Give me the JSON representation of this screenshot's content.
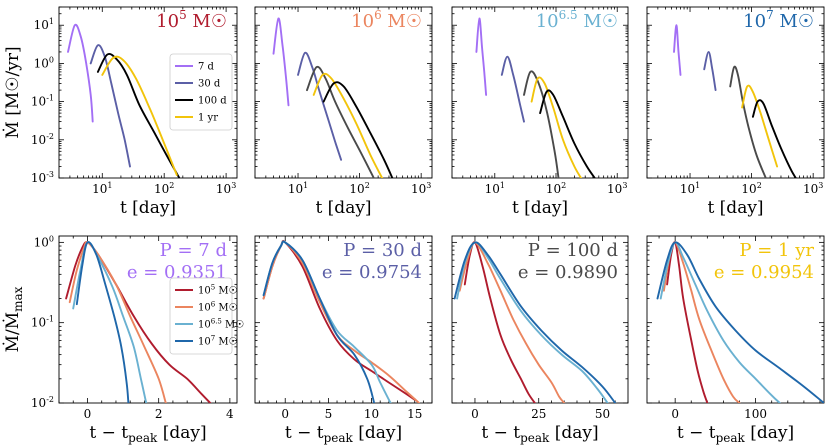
{
  "colors": {
    "p7d": "#a36ff5",
    "p30d": "#5b5fa6",
    "p100d": "#4a4a4a",
    "p100d_bh5": "#000000",
    "p1yr": "#f2c40b",
    "m5": "#b01c2e",
    "m6": "#eb855f",
    "m65": "#6ab1d1",
    "m7": "#1f67aa"
  },
  "chart_data": [
    {
      "type": "line",
      "panel": "top",
      "log_x": true,
      "log_y": true,
      "title": "10^5 M☉",
      "title_color": "m5",
      "xlabel": "t [day]",
      "ylabel": "Ṁ [M☉/yr]",
      "xlim": [
        2,
        1500
      ],
      "ylim": [
        0.001,
        30
      ],
      "xticks": [
        "10^1",
        "10^2",
        "10^3"
      ],
      "yticks": [
        "10^-3",
        "10^-2",
        "10^-1",
        "10^0",
        "10^1"
      ],
      "legend": {
        "placement": "center-right",
        "entries": [
          "7 d",
          "30 d",
          "100 d",
          "1 yr"
        ]
      },
      "series": [
        {
          "name": "7 d",
          "color": "p7d",
          "x": [
            2.8,
            3.6,
            4.5,
            5.5,
            6.5,
            7.0
          ],
          "y": [
            2.0,
            10.0,
            5.0,
            1.0,
            0.15,
            0.03
          ]
        },
        {
          "name": "30 d",
          "color": "p30d",
          "x": [
            6.5,
            8.5,
            11,
            14,
            18,
            23,
            28
          ],
          "y": [
            1.0,
            3.0,
            1.5,
            0.3,
            0.05,
            0.01,
            0.002
          ]
        },
        {
          "name": "100 d",
          "color": "p100d_bh5",
          "x": [
            8.5,
            12,
            17,
            25,
            40,
            70,
            120,
            190
          ],
          "y": [
            0.6,
            1.7,
            1.3,
            0.5,
            0.08,
            0.015,
            0.003,
            0.0008
          ]
        },
        {
          "name": "1 yr",
          "color": "p1yr",
          "x": [
            10,
            15,
            22,
            35,
            60,
            100,
            160
          ],
          "y": [
            0.5,
            1.4,
            1.2,
            0.4,
            0.06,
            0.008,
            0.0012
          ]
        }
      ]
    },
    {
      "type": "line",
      "panel": "top",
      "log_x": true,
      "log_y": true,
      "title": "10^6 M☉",
      "title_color": "m6",
      "xlabel": "t [day]",
      "ylabel": "",
      "xlim": [
        2,
        1500
      ],
      "ylim": [
        0.001,
        30
      ],
      "xticks": [
        "10^1",
        "10^2",
        "10^3"
      ],
      "yticks": [],
      "series": [
        {
          "name": "7 d",
          "color": "p7d",
          "x": [
            4.0,
            4.8,
            5.6,
            6.4,
            7.0
          ],
          "y": [
            1.8,
            15.0,
            3.0,
            0.4,
            0.08
          ]
        },
        {
          "name": "30 d",
          "color": "p30d",
          "x": [
            10,
            13,
            17,
            22,
            30,
            40,
            50
          ],
          "y": [
            0.5,
            1.9,
            0.8,
            0.2,
            0.04,
            0.009,
            0.003
          ]
        },
        {
          "name": "100 d",
          "color": "p100d",
          "x": [
            14,
            20,
            28,
            40,
            65,
            110,
            170
          ],
          "y": [
            0.2,
            0.8,
            0.4,
            0.1,
            0.02,
            0.004,
            0.001
          ]
        },
        {
          "name": "1 yr",
          "color": "p1yr",
          "x": [
            18,
            25,
            35,
            55,
            90,
            150,
            240
          ],
          "y": [
            0.15,
            0.5,
            0.4,
            0.12,
            0.025,
            0.004,
            0.0009
          ]
        },
        {
          "name": "",
          "color": "p100d_bh5",
          "x": [
            26,
            38,
            55,
            90,
            150,
            250,
            350
          ],
          "y": [
            0.1,
            0.3,
            0.25,
            0.07,
            0.015,
            0.003,
            0.0009
          ]
        }
      ]
    },
    {
      "type": "line",
      "panel": "top",
      "log_x": true,
      "log_y": true,
      "title": "10^6.5 M☉",
      "title_color": "m65",
      "xlabel": "t [day]",
      "ylabel": "",
      "xlim": [
        2,
        1500
      ],
      "ylim": [
        0.001,
        30
      ],
      "xticks": [
        "10^1",
        "10^2",
        "10^3"
      ],
      "yticks": [],
      "series": [
        {
          "name": "7 d",
          "color": "p7d",
          "x": [
            5.0,
            5.6,
            6.2,
            6.8,
            7.2
          ],
          "y": [
            2.0,
            15.0,
            2.5,
            0.5,
            0.15
          ]
        },
        {
          "name": "30 d",
          "color": "p30d",
          "x": [
            13,
            16,
            20,
            26,
            30
          ],
          "y": [
            0.5,
            1.5,
            0.5,
            0.08,
            0.03
          ]
        },
        {
          "name": "100 d",
          "color": "p100d",
          "x": [
            30,
            38,
            50,
            70,
            95,
            110
          ],
          "y": [
            0.15,
            0.6,
            0.35,
            0.06,
            0.005,
            0.001
          ]
        },
        {
          "name": "1 yr",
          "color": "p1yr",
          "x": [
            40,
            50,
            65,
            90,
            130,
            200,
            280
          ],
          "y": [
            0.1,
            0.4,
            0.3,
            0.07,
            0.01,
            0.002,
            0.0008
          ]
        },
        {
          "name": "",
          "color": "p100d_bh5",
          "x": [
            55,
            70,
            90,
            130,
            200,
            320,
            450
          ],
          "y": [
            0.05,
            0.18,
            0.15,
            0.04,
            0.008,
            0.002,
            0.0009
          ]
        }
      ]
    },
    {
      "type": "line",
      "panel": "top",
      "log_x": true,
      "log_y": true,
      "title": "10^7 M☉",
      "title_color": "m7",
      "xlabel": "t [day]",
      "ylabel": "",
      "xlim": [
        2,
        1500
      ],
      "ylim": [
        0.001,
        30
      ],
      "xticks": [
        "10^1",
        "10^2",
        "10^3"
      ],
      "yticks": [],
      "series": [
        {
          "name": "7 d",
          "color": "p7d",
          "x": [
            5.5,
            6.0,
            6.5,
            7.0
          ],
          "y": [
            2.0,
            10.0,
            2.0,
            0.5
          ]
        },
        {
          "name": "30 d",
          "color": "p30d",
          "x": [
            17,
            20,
            23,
            26
          ],
          "y": [
            0.7,
            2.0,
            0.7,
            0.2
          ]
        },
        {
          "name": "100 d",
          "color": "p100d",
          "x": [
            45,
            52,
            60,
            72,
            90,
            120,
            170
          ],
          "y": [
            0.25,
            0.8,
            0.5,
            0.1,
            0.02,
            0.004,
            0.001
          ]
        },
        {
          "name": "1 yr",
          "color": "p1yr",
          "x": [
            70,
            85,
            105,
            140,
            190,
            260
          ],
          "y": [
            0.07,
            0.25,
            0.18,
            0.05,
            0.01,
            0.002
          ]
        },
        {
          "name": "",
          "color": "p100d_bh5",
          "x": [
            105,
            125,
            155,
            210,
            300,
            450,
            640
          ],
          "y": [
            0.04,
            0.1,
            0.09,
            0.025,
            0.006,
            0.0015,
            0.0006
          ]
        }
      ]
    },
    {
      "type": "line",
      "panel": "bottom",
      "log_x": false,
      "log_y": true,
      "title": "P = 7 d",
      "title2": "e = 0.9351",
      "title_color": "p7d",
      "xlabel": "t − t_peak [day]",
      "ylabel": "Ṁ/Ṁ_max",
      "xlim": [
        -0.8,
        4.2
      ],
      "ylim": [
        0.01,
        1.2
      ],
      "xticks": [
        0,
        2,
        4
      ],
      "yticks": [
        "10^-2",
        "10^-1",
        "10^0"
      ],
      "legend": {
        "placement": "center-right",
        "entries": [
          "10^5 M☉",
          "10^6 M☉",
          "10^6.5 M☉",
          "10^7 M☉"
        ]
      },
      "series": [
        {
          "name": "10^5 M☉",
          "color": "m5",
          "x": [
            -0.6,
            -0.35,
            -0.15,
            0,
            0.3,
            0.8,
            1.3,
            1.8,
            2.3,
            2.8,
            3.2,
            3.45
          ],
          "y": [
            0.2,
            0.5,
            0.85,
            1.0,
            0.7,
            0.3,
            0.12,
            0.055,
            0.03,
            0.02,
            0.013,
            0.01
          ]
        },
        {
          "name": "10^6 M☉",
          "color": "m6",
          "x": [
            -0.5,
            -0.3,
            -0.1,
            0,
            0.3,
            0.8,
            1.2,
            1.6,
            2.0,
            2.2
          ],
          "y": [
            0.18,
            0.45,
            0.85,
            1.0,
            0.7,
            0.3,
            0.12,
            0.05,
            0.02,
            0.01
          ]
        },
        {
          "name": "10^6.5 M☉",
          "color": "m65",
          "x": [
            -0.4,
            -0.2,
            0,
            0.3,
            0.7,
            1.0,
            1.3,
            1.5,
            1.65
          ],
          "y": [
            0.15,
            0.45,
            1.0,
            0.65,
            0.28,
            0.12,
            0.05,
            0.02,
            0.01
          ]
        },
        {
          "name": "10^7 M☉",
          "color": "m7",
          "x": [
            -0.3,
            -0.15,
            0,
            0.25,
            0.5,
            0.75,
            0.95,
            1.1,
            1.15
          ],
          "y": [
            0.17,
            0.5,
            1.0,
            0.7,
            0.3,
            0.12,
            0.05,
            0.018,
            0.01
          ]
        }
      ]
    },
    {
      "type": "line",
      "panel": "bottom",
      "log_x": false,
      "log_y": true,
      "title": "P = 30 d",
      "title2": "e = 0.9754",
      "title_color": "p30d",
      "xlabel": "t − t_peak [day]",
      "ylabel": "",
      "xlim": [
        -3.5,
        17
      ],
      "ylim": [
        0.01,
        1.2
      ],
      "xticks": [
        0,
        5,
        10,
        15
      ],
      "yticks": [],
      "series": [
        {
          "name": "10^5 M☉",
          "color": "m5",
          "x": [
            -2.5,
            -1.5,
            -0.5,
            0,
            2,
            4,
            6,
            8,
            10,
            12,
            14,
            15
          ],
          "y": [
            0.2,
            0.5,
            0.9,
            1.0,
            0.5,
            0.15,
            0.06,
            0.035,
            0.025,
            0.018,
            0.013,
            0.011
          ]
        },
        {
          "name": "10^6 M☉",
          "color": "m6",
          "x": [
            -2.5,
            -1.5,
            -0.5,
            0,
            2,
            4,
            6,
            8,
            10,
            12,
            14,
            15.5
          ],
          "y": [
            0.2,
            0.5,
            0.9,
            1.0,
            0.55,
            0.18,
            0.07,
            0.045,
            0.032,
            0.022,
            0.014,
            0.01
          ]
        },
        {
          "name": "10^6.5 M☉",
          "color": "m65",
          "x": [
            -2.5,
            -1.5,
            -0.5,
            0,
            2,
            4,
            6,
            8,
            10,
            11,
            12.2
          ],
          "y": [
            0.22,
            0.55,
            0.9,
            1.0,
            0.6,
            0.2,
            0.08,
            0.05,
            0.03,
            0.018,
            0.01
          ]
        },
        {
          "name": "10^7 M☉",
          "color": "m7",
          "x": [
            -2.5,
            -1.5,
            -0.5,
            0,
            2,
            4,
            6,
            8,
            9.5,
            10.3
          ],
          "y": [
            0.22,
            0.55,
            0.9,
            1.0,
            0.6,
            0.2,
            0.07,
            0.04,
            0.02,
            0.01
          ]
        }
      ]
    },
    {
      "type": "line",
      "panel": "bottom",
      "log_x": false,
      "log_y": true,
      "title": "P = 100 d",
      "title2": "e = 0.9890",
      "title_color": "p100d",
      "xlabel": "t − t_peak [day]",
      "ylabel": "",
      "xlim": [
        -9,
        60
      ],
      "ylim": [
        0.01,
        1.2
      ],
      "xticks": [
        0,
        25,
        50
      ],
      "yticks": [],
      "series": [
        {
          "name": "10^5 M☉",
          "color": "m5",
          "x": [
            -4,
            -2,
            0,
            3,
            6,
            10,
            14,
            18,
            21,
            23.5
          ],
          "y": [
            0.3,
            0.7,
            1.0,
            0.5,
            0.2,
            0.07,
            0.035,
            0.02,
            0.013,
            0.01
          ]
        },
        {
          "name": "10^6 M☉",
          "color": "m6",
          "x": [
            -6,
            -3,
            0,
            5,
            10,
            15,
            20,
            25,
            30,
            33,
            35
          ],
          "y": [
            0.25,
            0.6,
            1.0,
            0.55,
            0.25,
            0.11,
            0.055,
            0.03,
            0.018,
            0.012,
            0.01
          ]
        },
        {
          "name": "10^6.5 M☉",
          "color": "m65",
          "x": [
            -7,
            -4,
            0,
            5,
            10,
            18,
            26,
            34,
            42,
            48,
            52
          ],
          "y": [
            0.2,
            0.55,
            1.0,
            0.65,
            0.35,
            0.14,
            0.07,
            0.04,
            0.025,
            0.015,
            0.01
          ]
        },
        {
          "name": "10^7 M☉",
          "color": "m7",
          "x": [
            -8,
            -4,
            0,
            5,
            10,
            18,
            26,
            34,
            42,
            50,
            55
          ],
          "y": [
            0.2,
            0.6,
            1.0,
            0.7,
            0.4,
            0.16,
            0.08,
            0.045,
            0.028,
            0.016,
            0.01
          ]
        }
      ]
    },
    {
      "type": "line",
      "panel": "bottom",
      "log_x": false,
      "log_y": true,
      "title": "P = 1 yr",
      "title2": "e = 0.9954",
      "title_color": "p1yr",
      "xlabel": "t − t_peak [day]",
      "ylabel": "",
      "xlim": [
        -35,
        185
      ],
      "ylim": [
        0.01,
        1.2
      ],
      "xticks": [
        0,
        100
      ],
      "yticks": [],
      "series": [
        {
          "name": "10^5 M☉",
          "color": "m5",
          "x": [
            -10,
            -5,
            0,
            5,
            10,
            20,
            28,
            35,
            40
          ],
          "y": [
            0.3,
            0.7,
            1.0,
            0.5,
            0.2,
            0.06,
            0.025,
            0.014,
            0.01
          ]
        },
        {
          "name": "10^6 M☉",
          "color": "m6",
          "x": [
            -14,
            -7,
            0,
            10,
            20,
            30,
            45,
            60,
            72,
            80
          ],
          "y": [
            0.25,
            0.65,
            1.0,
            0.55,
            0.25,
            0.11,
            0.045,
            0.02,
            0.012,
            0.01
          ]
        },
        {
          "name": "10^6.5 M☉",
          "color": "m65",
          "x": [
            -18,
            -9,
            0,
            10,
            25,
            40,
            60,
            80,
            100,
            118,
            130
          ],
          "y": [
            0.2,
            0.55,
            1.0,
            0.65,
            0.3,
            0.14,
            0.06,
            0.032,
            0.02,
            0.013,
            0.01
          ]
        },
        {
          "name": "10^7 M☉",
          "color": "m7",
          "x": [
            -22,
            -10,
            0,
            15,
            30,
            50,
            75,
            100,
            130,
            160,
            185
          ],
          "y": [
            0.2,
            0.6,
            1.0,
            0.7,
            0.35,
            0.16,
            0.08,
            0.045,
            0.027,
            0.016,
            0.01
          ]
        }
      ]
    }
  ]
}
